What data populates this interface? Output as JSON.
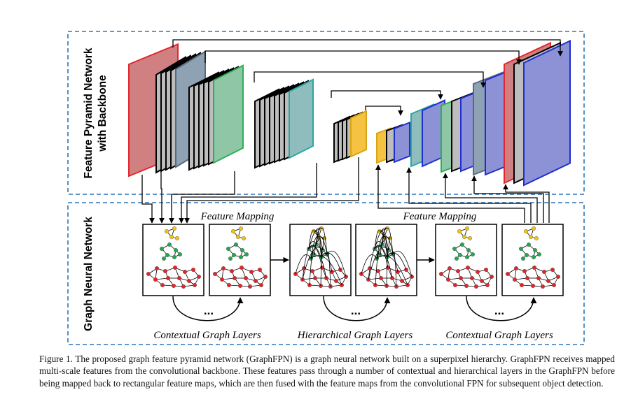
{
  "figure": {
    "panels": {
      "top_label_line1": "Feature Pyramid Network",
      "top_label_line2": "with Backbone",
      "bottom_label": "Graph Neural Network"
    },
    "labels": {
      "feature_mapping_left": "Feature Mapping",
      "feature_mapping_right": "Feature Mapping",
      "contextual_left": "Contextual Graph Layers",
      "hierarchical": "Hierarchical Graph Layers",
      "contextual_right": "Contextual Graph Layers",
      "ellipsis": "..."
    },
    "colors": {
      "border_dash": "#2e75b6",
      "red": "#e3262f",
      "red_fill": "#d08080",
      "slate": "#8fa2b4",
      "green": "#2fae55",
      "green_fill": "#8fc7a6",
      "teal": "#2aa7a5",
      "teal_fill": "#8fbcbc",
      "yellow": "#f5c242",
      "blue": "#1f2fcf",
      "blue_fill": "#8d91d6",
      "gray": "#bdbdbd",
      "node_yellow": "#f1c40f",
      "node_green": "#22a94f",
      "node_red": "#e0262b"
    }
  },
  "caption": "Figure 1. The proposed graph feature pyramid network (GraphFPN) is a graph neural network built on a superpixel hierarchy. GraphFPN receives mapped multi-scale features from the convolutional backbone. These features pass through a number of contextual and hierarchical layers in the GraphFPN before being mapped back to rectangular feature maps, which are then fused with the feature maps from the convolutional FPN for subsequent object detection."
}
